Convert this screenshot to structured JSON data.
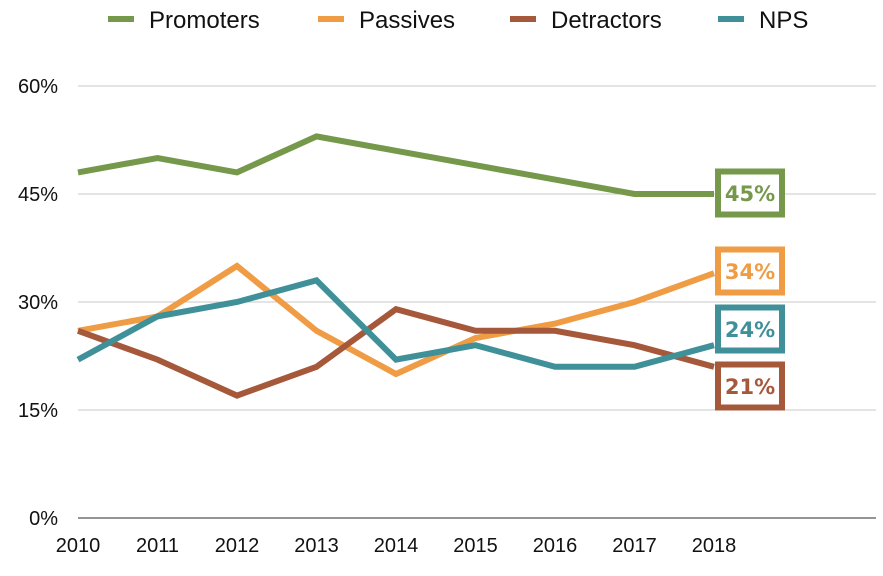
{
  "chart_data": {
    "type": "line",
    "x": [
      "2010",
      "2011",
      "2012",
      "2013",
      "2014",
      "2015",
      "2016",
      "2017",
      "2018"
    ],
    "yticks": [
      "0%",
      "15%",
      "30%",
      "45%",
      "60%"
    ],
    "ylim": [
      0,
      60
    ],
    "grid": true,
    "legend_position": "top",
    "series": [
      {
        "name": "Promoters",
        "color": "#76984a",
        "values": [
          48,
          50,
          48,
          53,
          51,
          49,
          47,
          45,
          45
        ],
        "end_label": "45%"
      },
      {
        "name": "Passives",
        "color": "#ef9c45",
        "values": [
          26,
          28,
          35,
          26,
          20,
          25,
          27,
          30,
          34
        ],
        "end_label": "34%"
      },
      {
        "name": "Detractors",
        "color": "#a5593a",
        "values": [
          26,
          22,
          17,
          21,
          29,
          26,
          26,
          24,
          21
        ],
        "end_label": "21%"
      },
      {
        "name": "NPS",
        "color": "#3f9098",
        "values": [
          22,
          28,
          30,
          33,
          22,
          24,
          21,
          21,
          24
        ],
        "end_label": "24%"
      }
    ]
  }
}
